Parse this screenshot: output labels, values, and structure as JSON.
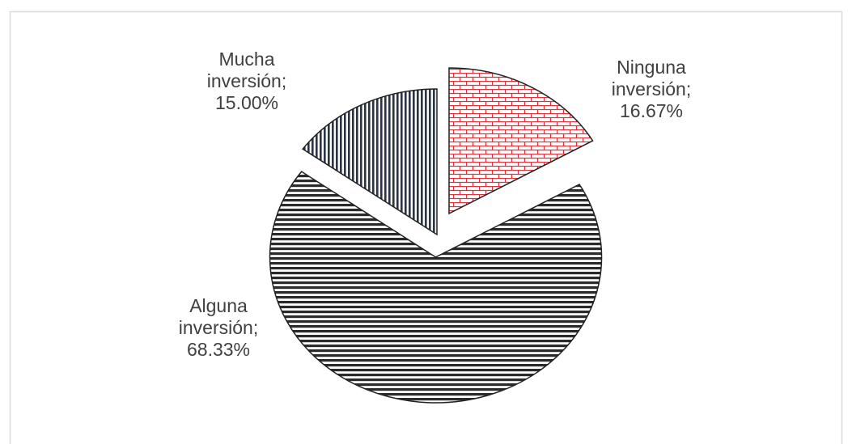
{
  "chart_data": {
    "type": "pie",
    "categories": [
      "Ninguna inversión;",
      "Alguna inversión;",
      "Mucha inversión;"
    ],
    "values": [
      16.67,
      68.33,
      15
    ],
    "value_labels": [
      "16.67%",
      "68.33%",
      "15.00%"
    ],
    "colors": [
      "#e0323a",
      "#2a2a2a",
      "#2b3442"
    ]
  }
}
